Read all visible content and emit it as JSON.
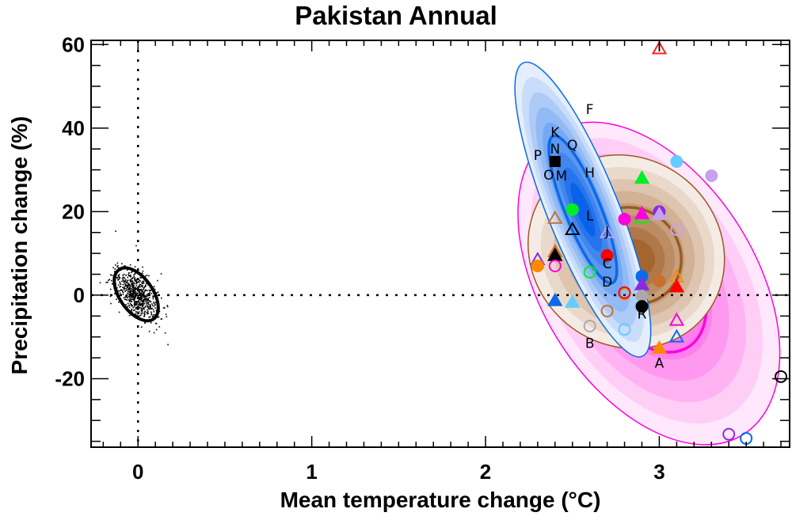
{
  "chart_data": {
    "type": "scatter",
    "title": "Pakistan Annual",
    "xlabel": "Mean temperature change (°C)",
    "ylabel": "Precipitation change (%)",
    "xlim": [
      -0.27,
      3.75
    ],
    "ylim": [
      -36.4,
      61
    ],
    "xticks": [
      0,
      1,
      2,
      3
    ],
    "xtick_labels": [
      "0",
      "1",
      "2",
      "3"
    ],
    "yticks": [
      60,
      40,
      20,
      0,
      -20
    ],
    "ytick_labels": [
      "60",
      "40",
      "20",
      "0",
      "-20"
    ],
    "grid": false,
    "reference_lines": {
      "x": 0,
      "y": 0,
      "style": "dotted"
    },
    "distributions": [
      {
        "color": "#ff00dd",
        "center": [
          2.94,
          2.8
        ]
      },
      {
        "color": "#9a5a22",
        "center": [
          2.81,
          10.4
        ]
      },
      {
        "color": "#0a6ae8",
        "center": [
          2.56,
          20.5
        ]
      },
      {
        "color": "#000000",
        "center": [
          -0.01,
          0.2
        ]
      }
    ],
    "letter_labels": [
      {
        "text": "F",
        "x": 2.6,
        "y": 44.5
      },
      {
        "text": "K",
        "x": 2.4,
        "y": 39
      },
      {
        "text": "N",
        "x": 2.4,
        "y": 35
      },
      {
        "text": "Q",
        "x": 2.5,
        "y": 36
      },
      {
        "text": "P",
        "x": 2.3,
        "y": 33.5
      },
      {
        "text": "O",
        "x": 2.4,
        "y": 28.8
      },
      {
        "text": "M",
        "x": 2.4,
        "y": 28.6
      },
      {
        "text": "H",
        "x": 2.6,
        "y": 29.4
      },
      {
        "text": "L",
        "x": 2.6,
        "y": 19
      },
      {
        "text": "J",
        "x": 2.7,
        "y": 15.3
      },
      {
        "text": "C",
        "x": 2.7,
        "y": 6.8
      },
      {
        "text": "D",
        "x": 2.7,
        "y": 4
      },
      {
        "text": "R",
        "x": 2.9,
        "y": -4.5
      },
      {
        "text": "B",
        "x": 2.6,
        "y": -11.5
      },
      {
        "text": "A",
        "x": 3.0,
        "y": -16.2
      },
      {
        "text": "I",
        "x": 3.0,
        "y": 59.5
      }
    ],
    "points": [
      {
        "m": "tri-open",
        "c": "#ff2020",
        "x": 3.0,
        "y": 59
      },
      {
        "m": "square-filled",
        "c": "#000000",
        "x": 2.4,
        "y": 32
      },
      {
        "m": "circle-filled",
        "c": "#00ee22",
        "x": 2.5,
        "y": 20.5
      },
      {
        "m": "tri-open",
        "c": "#c8702e",
        "x": 2.4,
        "y": 18.4
      },
      {
        "m": "tri-open",
        "c": "#000000",
        "x": 2.5,
        "y": 15.7
      },
      {
        "m": "tri-open",
        "c": "#c8a0f0",
        "x": 2.7,
        "y": 15
      },
      {
        "m": "tri-filled",
        "c": "#00ee22",
        "x": 2.9,
        "y": 28
      },
      {
        "m": "circle-filled",
        "c": "#66ccff",
        "x": 3.1,
        "y": 32
      },
      {
        "m": "circle-filled",
        "c": "#c8a0f0",
        "x": 3.3,
        "y": 28.6
      },
      {
        "m": "circle-filled",
        "c": "#ff00dd",
        "x": 2.8,
        "y": 18.2
      },
      {
        "m": "tri-open",
        "c": "#00ee22",
        "x": 2.9,
        "y": 18.6
      },
      {
        "m": "tri-filled",
        "c": "#ff00dd",
        "x": 2.9,
        "y": 19.5
      },
      {
        "m": "circle-filled",
        "c": "#8a2be2",
        "x": 3.0,
        "y": 20
      },
      {
        "m": "tri-filled",
        "c": "#c8a0f0",
        "x": 3.0,
        "y": 19.3
      },
      {
        "m": "circle-open",
        "c": "#c8a0f0",
        "x": 3.1,
        "y": 15.7
      },
      {
        "m": "circle-filled",
        "c": "#ff0000",
        "x": 2.7,
        "y": 9.5
      },
      {
        "m": "tri-open",
        "c": "#8a2be2",
        "x": 2.3,
        "y": 8.5
      },
      {
        "m": "circle-filled",
        "c": "#ff8800",
        "x": 2.3,
        "y": 7
      },
      {
        "m": "tri-filled",
        "c": "#c8702e",
        "x": 2.4,
        "y": 10.4
      },
      {
        "m": "tri-filled",
        "c": "#000000",
        "x": 2.4,
        "y": 9.5
      },
      {
        "m": "circle-open",
        "c": "#ff00dd",
        "x": 2.4,
        "y": 7
      },
      {
        "m": "circle-open",
        "c": "#00ee22",
        "x": 2.6,
        "y": 5.5
      },
      {
        "m": "circle-filled",
        "c": "#0a6ae8",
        "x": 2.9,
        "y": 4.5
      },
      {
        "m": "tri-filled",
        "c": "#8a2be2",
        "x": 2.9,
        "y": 2.5
      },
      {
        "m": "circle-filled",
        "c": "#c8702e",
        "x": 3.0,
        "y": 3.4
      },
      {
        "m": "tri-open",
        "c": "#ff8800",
        "x": 3.1,
        "y": 4.4
      },
      {
        "m": "tri-filled",
        "c": "#ff0000",
        "x": 3.1,
        "y": 2
      },
      {
        "m": "circle-open",
        "c": "#ff8800",
        "x": 2.8,
        "y": 0.3
      },
      {
        "m": "circle-open",
        "c": "#ff0000",
        "x": 2.8,
        "y": 0.6
      },
      {
        "m": "circle-filled",
        "c": "#aaaaaa",
        "x": 2.9,
        "y": -0.2
      },
      {
        "m": "circle-filled",
        "c": "#000000",
        "x": 2.9,
        "y": -2.7
      },
      {
        "m": "tri-filled",
        "c": "#0a6ae8",
        "x": 2.4,
        "y": -1.3
      },
      {
        "m": "tri-filled",
        "c": "#66ccff",
        "x": 2.5,
        "y": -1.7
      },
      {
        "m": "circle-open",
        "c": "#c8702e",
        "x": 2.7,
        "y": -3.8
      },
      {
        "m": "circle-open",
        "c": "#aaaaaa",
        "x": 2.6,
        "y": -7.4
      },
      {
        "m": "circle-open",
        "c": "#66ccff",
        "x": 2.8,
        "y": -8.2
      },
      {
        "m": "tri-open",
        "c": "#ff00dd",
        "x": 3.1,
        "y": -6
      },
      {
        "m": "tri-open",
        "c": "#0a6ae8",
        "x": 3.1,
        "y": -10
      },
      {
        "m": "tri-filled",
        "c": "#ff8800",
        "x": 3.0,
        "y": -12.7
      },
      {
        "m": "circle-open",
        "c": "#8a2be2",
        "x": 3.4,
        "y": -33.3
      },
      {
        "m": "circle-open",
        "c": "#0a6ae8",
        "x": 3.5,
        "y": -34.3
      },
      {
        "m": "circle-open",
        "c": "#000000",
        "x": 3.7,
        "y": -19.5
      }
    ]
  }
}
